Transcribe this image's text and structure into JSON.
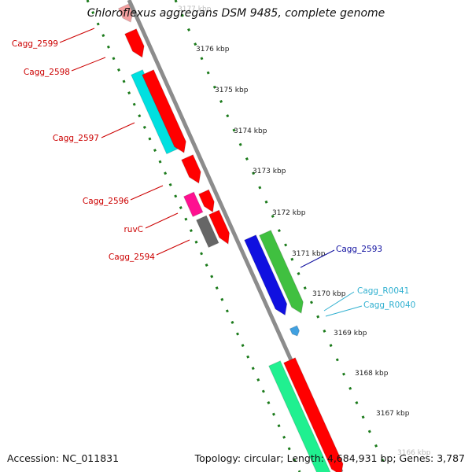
{
  "title": "Chloroflexus aggregans DSM 9485, complete genome",
  "footer": {
    "accession": "Accession: NC_011831",
    "summary": "Topology: circular; Length: 4,684,931 bp; Genes: 3,787"
  },
  "colors": {
    "backbone": "#8c8c8c",
    "tick": "#1a7a1a",
    "forward_gene": "#ff0000",
    "label_red": "#cc0000",
    "label_blue": "#1010a0",
    "label_cyan": "#30b0d0"
  },
  "ruler": [
    {
      "label": "3177 kbp"
    },
    {
      "label": "3176 kbp"
    },
    {
      "label": "3175 kbp"
    },
    {
      "label": "3174 kbp"
    },
    {
      "label": "3173 kbp"
    },
    {
      "label": "3172 kbp"
    },
    {
      "label": "3171 kbp"
    },
    {
      "label": "3170 kbp"
    },
    {
      "label": "3169 kbp"
    },
    {
      "label": "3168 kbp"
    },
    {
      "label": "3167 kbp"
    },
    {
      "label": "3166 kbp"
    }
  ],
  "gene_labels": [
    {
      "text": "Cagg_2599",
      "color": "#cc0000"
    },
    {
      "text": "Cagg_2598",
      "color": "#cc0000"
    },
    {
      "text": "Cagg_2597",
      "color": "#cc0000"
    },
    {
      "text": "Cagg_2596",
      "color": "#cc0000"
    },
    {
      "text": "ruvC",
      "color": "#cc0000"
    },
    {
      "text": "Cagg_2594",
      "color": "#cc0000"
    },
    {
      "text": "Cagg_2593",
      "color": "#1010a0"
    },
    {
      "text": "Cagg_R0041",
      "color": "#30b0d0"
    },
    {
      "text": "Cagg_R0040",
      "color": "#30b0d0"
    }
  ]
}
